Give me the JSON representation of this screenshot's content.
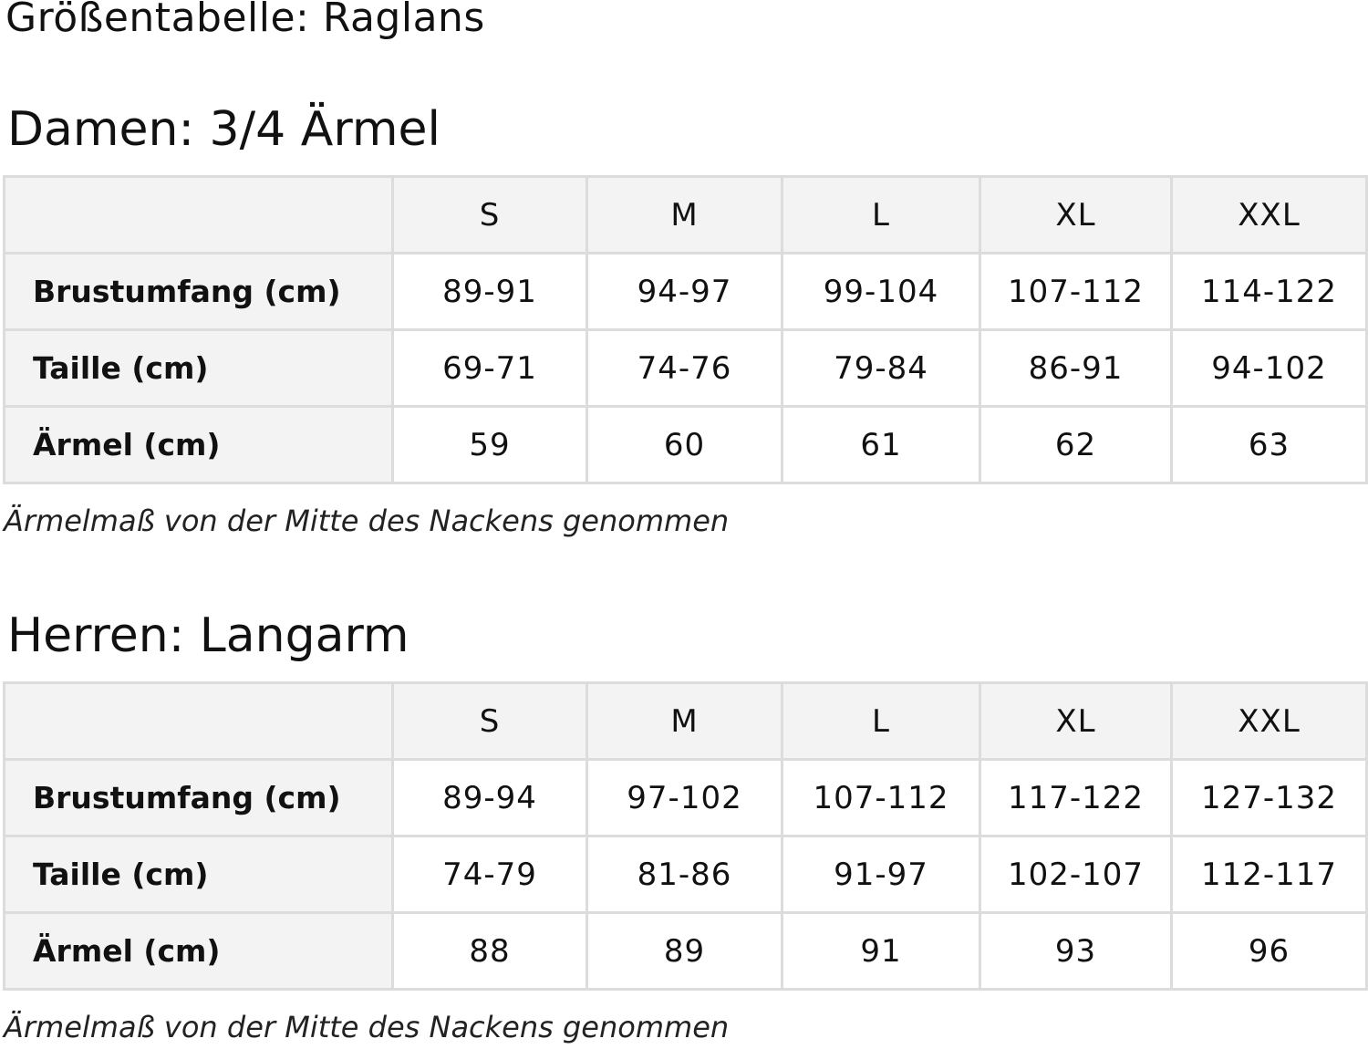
{
  "title": "Größentabelle: Raglans",
  "sections": [
    {
      "heading": "Damen: 3/4 Ärmel",
      "sizes": [
        "S",
        "M",
        "L",
        "XL",
        "XXL"
      ],
      "rows": [
        {
          "label": "Brustumfang (cm)",
          "values": [
            "89-91",
            "94-97",
            "99-104",
            "107-112",
            "114-122"
          ]
        },
        {
          "label": "Taille (cm)",
          "values": [
            "69-71",
            "74-76",
            "79-84",
            "86-91",
            "94-102"
          ]
        },
        {
          "label": "Ärmel (cm)",
          "values": [
            "59",
            "60",
            "61",
            "62",
            "63"
          ]
        }
      ],
      "note": "Ärmelmaß von der Mitte des Nackens genommen"
    },
    {
      "heading": "Herren: Langarm",
      "sizes": [
        "S",
        "M",
        "L",
        "XL",
        "XXL"
      ],
      "rows": [
        {
          "label": "Brustumfang (cm)",
          "values": [
            "89-94",
            "97-102",
            "107-112",
            "117-122",
            "127-132"
          ]
        },
        {
          "label": "Taille (cm)",
          "values": [
            "74-79",
            "81-86",
            "91-97",
            "102-107",
            "112-117"
          ]
        },
        {
          "label": "Ärmel (cm)",
          "values": [
            "88",
            "89",
            "91",
            "93",
            "96"
          ]
        }
      ],
      "note": "Ärmelmaß von der Mitte des Nackens genommen"
    }
  ]
}
